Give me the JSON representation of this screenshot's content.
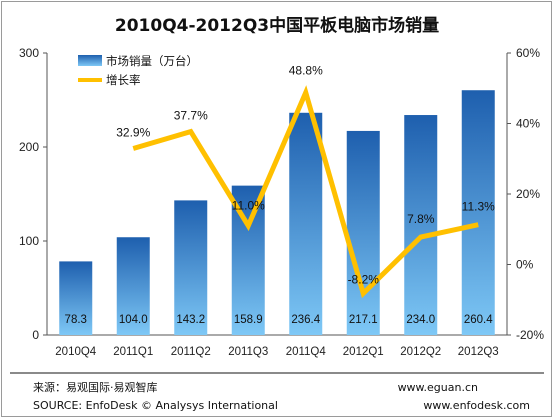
{
  "chart_data": {
    "type": "bar",
    "title": "2010Q4-2012Q3中国平板电脑市场销量",
    "categories": [
      "2010Q4",
      "2011Q1",
      "2011Q2",
      "2011Q3",
      "2011Q4",
      "2012Q1",
      "2012Q2",
      "2012Q3"
    ],
    "series": [
      {
        "name": "市场销量（万台）",
        "type": "bar",
        "axis": "left",
        "values": [
          78.3,
          104.0,
          143.2,
          158.9,
          236.4,
          217.1,
          234.0,
          260.4
        ],
        "labels": [
          "78.3",
          "104.0",
          "143.2",
          "158.9",
          "236.4",
          "217.1",
          "234.0",
          "260.4"
        ]
      },
      {
        "name": "增长率",
        "type": "line",
        "axis": "right",
        "values": [
          null,
          32.9,
          37.7,
          11.0,
          48.8,
          -8.2,
          7.8,
          11.3
        ],
        "labels": [
          "",
          "32.9%",
          "37.7%",
          "11.0%",
          "48.8%",
          "-8.2%",
          "7.8%",
          "11.3%"
        ]
      }
    ],
    "y_left": {
      "min": 0,
      "max": 300,
      "ticks": [
        "0",
        "100",
        "200",
        "300"
      ]
    },
    "y_right": {
      "min": -20,
      "max": 60,
      "ticks": [
        "-20%",
        "0%",
        "20%",
        "40%",
        "60%"
      ]
    },
    "grid": false,
    "legend_position": "top-left",
    "colors": {
      "bar_top": "#1e5fae",
      "bar_bottom": "#7ec8f6",
      "line": "#ffc000"
    }
  },
  "footer": {
    "source_cn": "来源：易观国际·易观智库",
    "source_en": "SOURCE: EnfoDesk © Analysys International",
    "site1": "www.eguan.cn",
    "site2": "www.enfodesk.com"
  }
}
